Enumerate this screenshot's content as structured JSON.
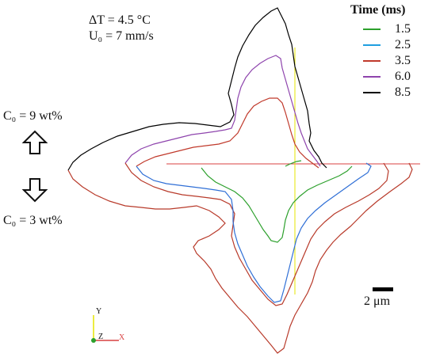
{
  "params": {
    "line1": "ΔT = 4.5 °C",
    "line2": "U₀ = 7 mm/s"
  },
  "concentration": {
    "top": "C₀ = 9 wt%",
    "bottom": "C₀ = 3 wt%"
  },
  "legend": {
    "title": "Time (ms)",
    "items": [
      {
        "label": "1.5",
        "color": "#2ca02c"
      },
      {
        "label": "2.5",
        "color": "#1f77d4"
      },
      {
        "label": "3.5",
        "color": "#c0392b"
      },
      {
        "label": "6.0",
        "color": "#8e44ad"
      },
      {
        "label": "8.5",
        "color": "#000000"
      }
    ]
  },
  "scale": {
    "label": "2 μm"
  },
  "axes_triad": {
    "y": "Y",
    "z": "Z",
    "x": "X"
  },
  "colors": {
    "pink_outline": "#e8a0a0",
    "axis_yellow": "#e6e600",
    "axis_red": "#d94040"
  }
}
